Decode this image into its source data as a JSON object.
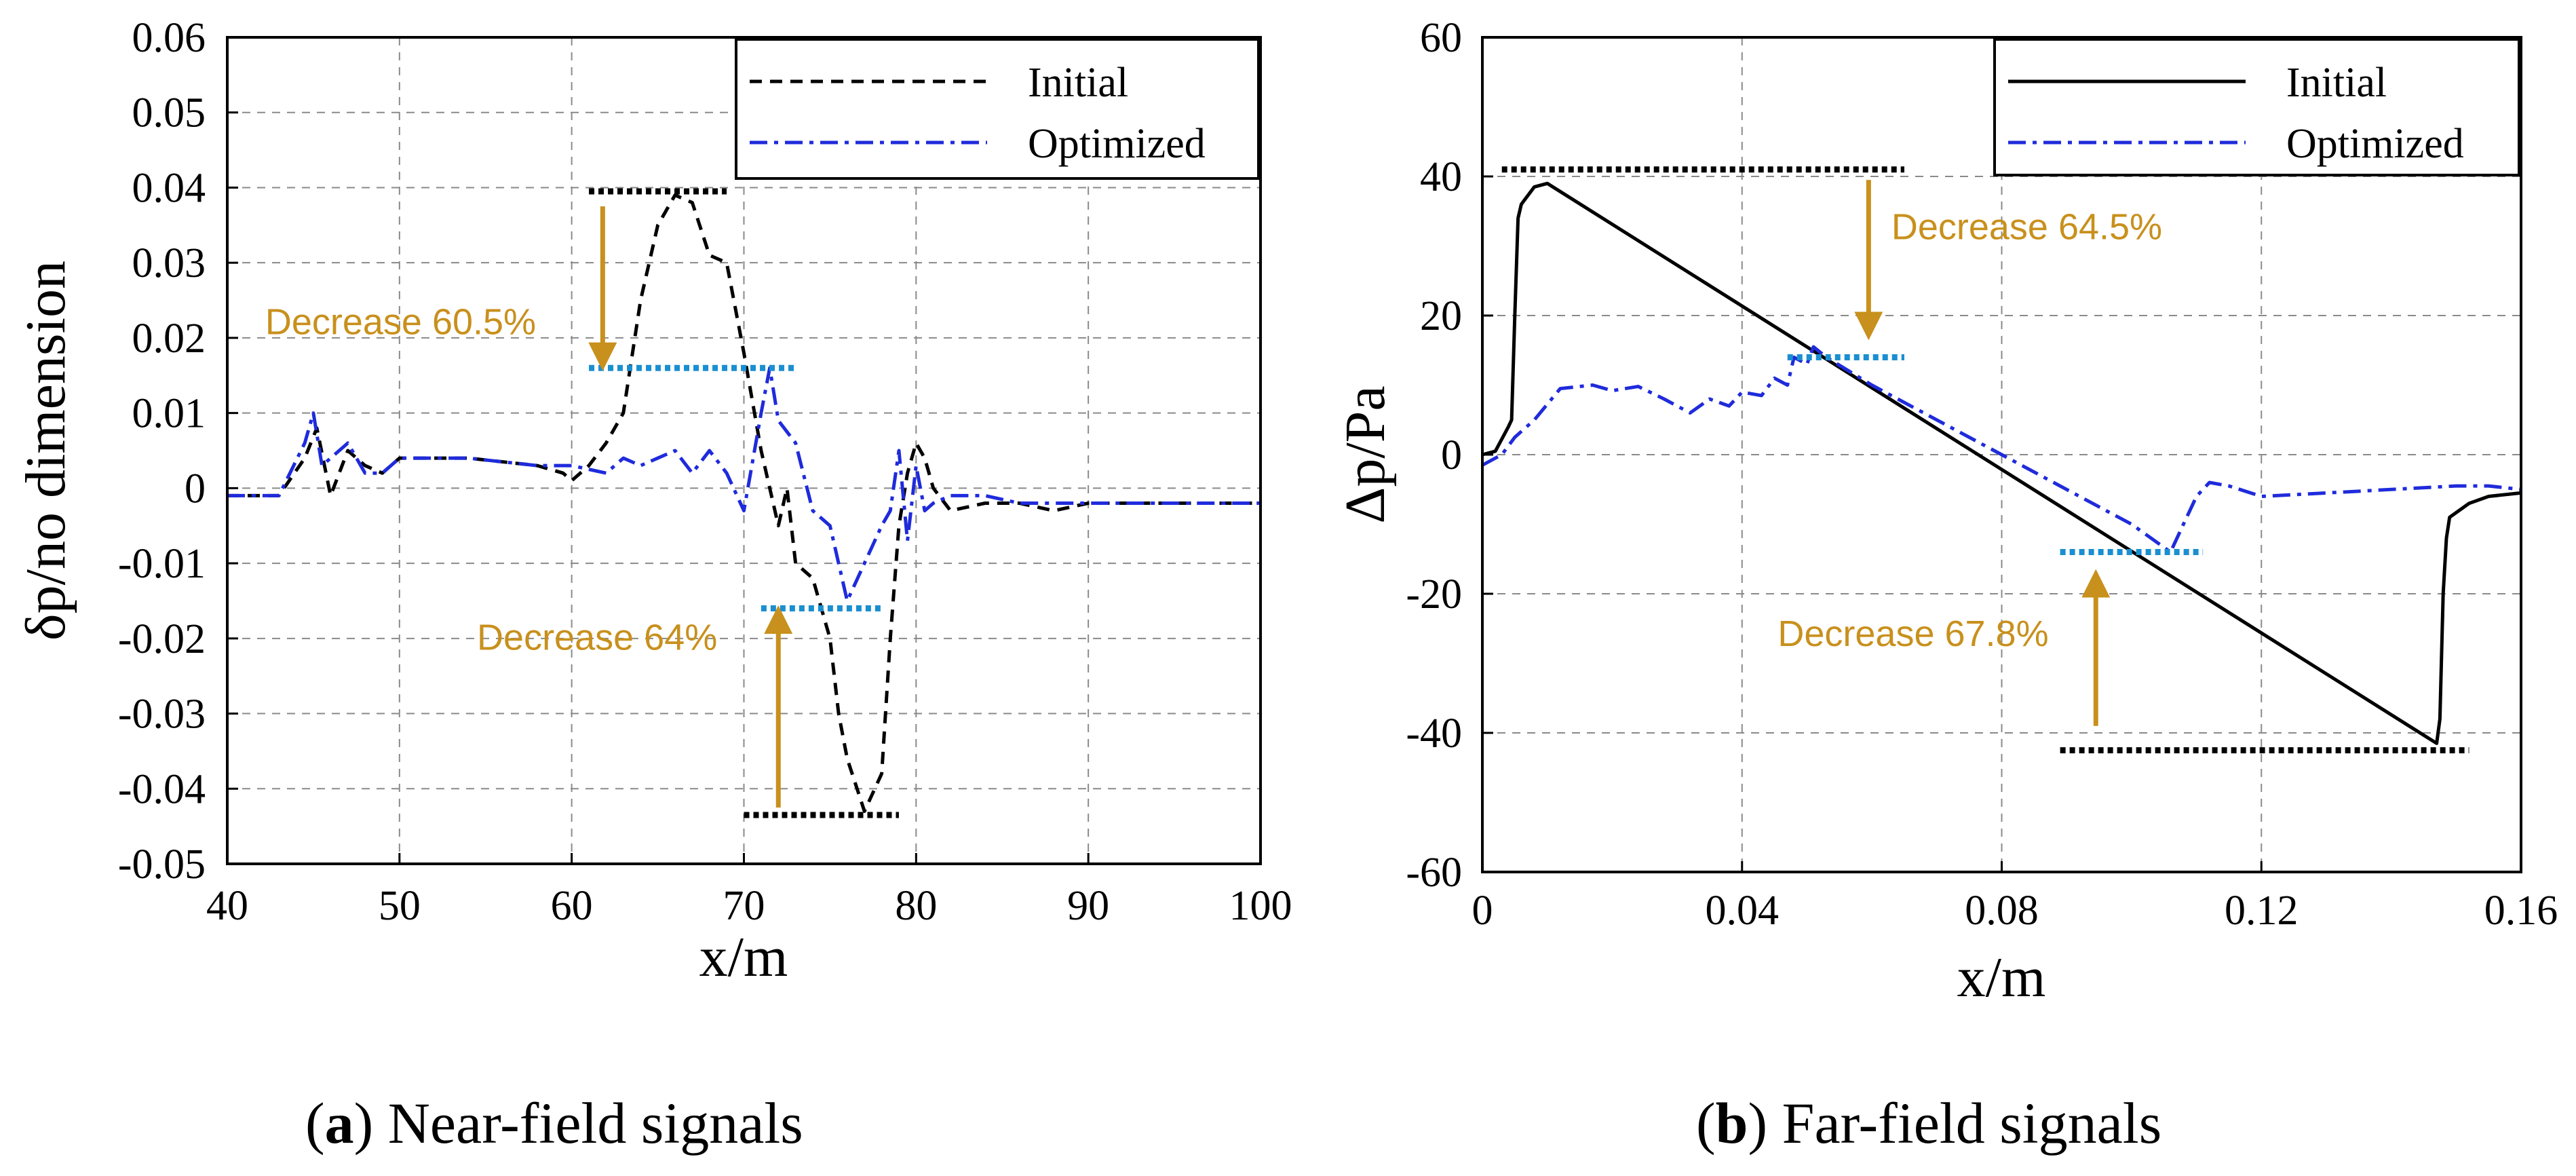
{
  "chart_data": [
    {
      "type": "line",
      "panel_letter": "a",
      "caption": "Near-field signals",
      "xlabel": "x/m",
      "ylabel": "δp/no dimension",
      "xlim": [
        40,
        100
      ],
      "ylim": [
        -0.05,
        0.06
      ],
      "x_ticks": [
        40,
        50,
        60,
        70,
        80,
        90,
        100
      ],
      "x_tick_labels": [
        "40",
        "50",
        "60",
        "70",
        "80",
        "90",
        "100"
      ],
      "y_ticks": [
        0.06,
        0.05,
        0.04,
        0.03,
        0.02,
        0.01,
        0,
        -0.01,
        -0.02,
        -0.03,
        -0.04,
        -0.05
      ],
      "y_tick_labels": [
        "0.06",
        "0.05",
        "0.04",
        "0.03",
        "0.02",
        "0.01",
        "0",
        "-0.01",
        "-0.02",
        "-0.03",
        "-0.04",
        "-0.05"
      ],
      "grid": true,
      "legend_position": "top-right",
      "series": [
        {
          "name": "Initial",
          "color": "#000000",
          "style": "dashed",
          "x": [
            40,
            43,
            44.5,
            45.2,
            46,
            47,
            48,
            49,
            50,
            54,
            58,
            59.5,
            60,
            61,
            62,
            63,
            64,
            65,
            66,
            67,
            68,
            69,
            70,
            71,
            72,
            72.5,
            73,
            74,
            75,
            75.5,
            76,
            77,
            78,
            78.5,
            79,
            79.5,
            80,
            80.5,
            81,
            82,
            84,
            86,
            88,
            90,
            95,
            100
          ],
          "y": [
            -0.001,
            -0.001,
            0.004,
            0.008,
            -0.001,
            0.005,
            0.003,
            0.002,
            0.004,
            0.004,
            0.003,
            0.002,
            0.001,
            0.003,
            0.006,
            0.01,
            0.025,
            0.035,
            0.039,
            0.038,
            0.031,
            0.03,
            0.018,
            0.005,
            -0.005,
            0.0,
            -0.01,
            -0.012,
            -0.02,
            -0.03,
            -0.036,
            -0.043,
            -0.038,
            -0.02,
            -0.005,
            0.002,
            0.006,
            0.004,
            0.0,
            -0.003,
            -0.002,
            -0.002,
            -0.003,
            -0.002,
            -0.002,
            -0.002
          ]
        },
        {
          "name": "Optimized",
          "color": "#1f2bdb",
          "style": "dash-dot",
          "x": [
            40,
            43,
            44.5,
            45,
            45.5,
            46,
            47,
            48,
            49,
            50,
            54,
            58,
            60,
            62,
            63,
            64,
            65,
            66,
            67,
            68,
            69,
            70,
            71,
            71.5,
            72,
            73,
            74,
            75,
            76,
            77,
            78,
            78.5,
            79,
            79.5,
            80,
            80.5,
            81,
            82,
            84,
            86,
            88,
            90,
            95,
            100
          ],
          "y": [
            -0.001,
            -0.001,
            0.006,
            0.01,
            0.003,
            0.004,
            0.006,
            0.002,
            0.002,
            0.004,
            0.004,
            0.003,
            0.003,
            0.002,
            0.004,
            0.003,
            0.004,
            0.005,
            0.002,
            0.005,
            0.002,
            -0.003,
            0.01,
            0.016,
            0.009,
            0.006,
            -0.003,
            -0.005,
            -0.015,
            -0.01,
            -0.005,
            -0.003,
            0.005,
            -0.007,
            0.003,
            -0.003,
            -0.002,
            -0.001,
            -0.001,
            -0.002,
            -0.002,
            -0.002,
            -0.002,
            -0.002
          ]
        }
      ],
      "reference_lines": [
        {
          "x": [
            61,
            69
          ],
          "y": 0.0395,
          "color": "#000000",
          "style": "dotted"
        },
        {
          "x": [
            61,
            73
          ],
          "y": 0.016,
          "color": "#1a8fd0",
          "style": "dotted"
        },
        {
          "x": [
            71,
            78
          ],
          "y": -0.016,
          "color": "#1a8fd0",
          "style": "dotted"
        },
        {
          "x": [
            70,
            79
          ],
          "y": -0.0435,
          "color": "#000000",
          "style": "dotted"
        }
      ],
      "arrows": [
        {
          "x": 61.8,
          "y_from": 0.0375,
          "y_to": 0.0175
        },
        {
          "x": 72,
          "y_from": -0.0425,
          "y_to": -0.0175
        }
      ],
      "annotations": [
        {
          "text": "Decrease 60.5%",
          "x": 42.2,
          "y": 0.0205,
          "color": "#c8901c"
        },
        {
          "text": "Decrease 64%",
          "x": 54.5,
          "y": -0.0215,
          "color": "#c8901c"
        }
      ]
    },
    {
      "type": "line",
      "panel_letter": "b",
      "caption": "Far-field signals",
      "xlabel": "x/m",
      "ylabel": "Δp/Pa",
      "xlim": [
        0,
        0.16
      ],
      "ylim": [
        -60,
        60
      ],
      "x_ticks": [
        0,
        0.04,
        0.08,
        0.12,
        0.16
      ],
      "x_tick_labels": [
        "0",
        "0.04",
        "0.08",
        "0.12",
        "0.16"
      ],
      "y_ticks": [
        60,
        40,
        20,
        0,
        -20,
        -40,
        -60
      ],
      "y_tick_labels": [
        "60",
        "40",
        "20",
        "0",
        "-20",
        "-40",
        "-60"
      ],
      "grid": true,
      "legend_position": "top-right",
      "series": [
        {
          "name": "Initial",
          "color": "#000000",
          "style": "solid",
          "x": [
            0,
            0.002,
            0.004,
            0.0045,
            0.005,
            0.0055,
            0.006,
            0.008,
            0.01,
            0.147,
            0.1475,
            0.148,
            0.1485,
            0.149,
            0.152,
            0.155,
            0.16
          ],
          "y": [
            0,
            0.5,
            4,
            5,
            20,
            34,
            36,
            38.5,
            39,
            -41.5,
            -38,
            -20,
            -12,
            -9,
            -7,
            -6,
            -5.5
          ]
        },
        {
          "name": "Optimized",
          "color": "#1f2bdb",
          "style": "dash-dot",
          "x": [
            0,
            0.003,
            0.005,
            0.008,
            0.012,
            0.017,
            0.02,
            0.024,
            0.028,
            0.032,
            0.035,
            0.038,
            0.04,
            0.043,
            0.045,
            0.047,
            0.048,
            0.05,
            0.051,
            0.053,
            0.06,
            0.07,
            0.08,
            0.09,
            0.1,
            0.106,
            0.108,
            0.11,
            0.112,
            0.115,
            0.12,
            0.13,
            0.14,
            0.15,
            0.155,
            0.16
          ],
          "y": [
            -1.5,
            0,
            2.5,
            5,
            9.5,
            10,
            9.2,
            9.8,
            8,
            6,
            8,
            7,
            9,
            8.5,
            11,
            10,
            14,
            13,
            15.5,
            14,
            10,
            5,
            0,
            -5,
            -10,
            -14,
            -10,
            -6,
            -4,
            -4.5,
            -6,
            -5.5,
            -5,
            -4.5,
            -4.5,
            -5
          ]
        }
      ],
      "reference_lines": [
        {
          "x": [
            0.003,
            0.065
          ],
          "y": 41,
          "color": "#000000",
          "style": "dotted"
        },
        {
          "x": [
            0.047,
            0.065
          ],
          "y": 14,
          "color": "#1a8fd0",
          "style": "dotted"
        },
        {
          "x": [
            0.089,
            0.111
          ],
          "y": -14,
          "color": "#1a8fd0",
          "style": "dotted"
        },
        {
          "x": [
            0.089,
            0.152
          ],
          "y": -42.5,
          "color": "#000000",
          "style": "dotted"
        }
      ],
      "arrows": [
        {
          "x": 0.0595,
          "y_from": 39.5,
          "y_to": 18.5
        },
        {
          "x": 0.0945,
          "y_from": -39,
          "y_to": -18.5
        }
      ],
      "annotations": [
        {
          "text": "Decrease 64.5%",
          "x": 0.063,
          "y": 31,
          "color": "#c8901c"
        },
        {
          "text": "Decrease 67.8%",
          "x": 0.0455,
          "y": -27.5,
          "color": "#c8901c"
        }
      ]
    }
  ]
}
